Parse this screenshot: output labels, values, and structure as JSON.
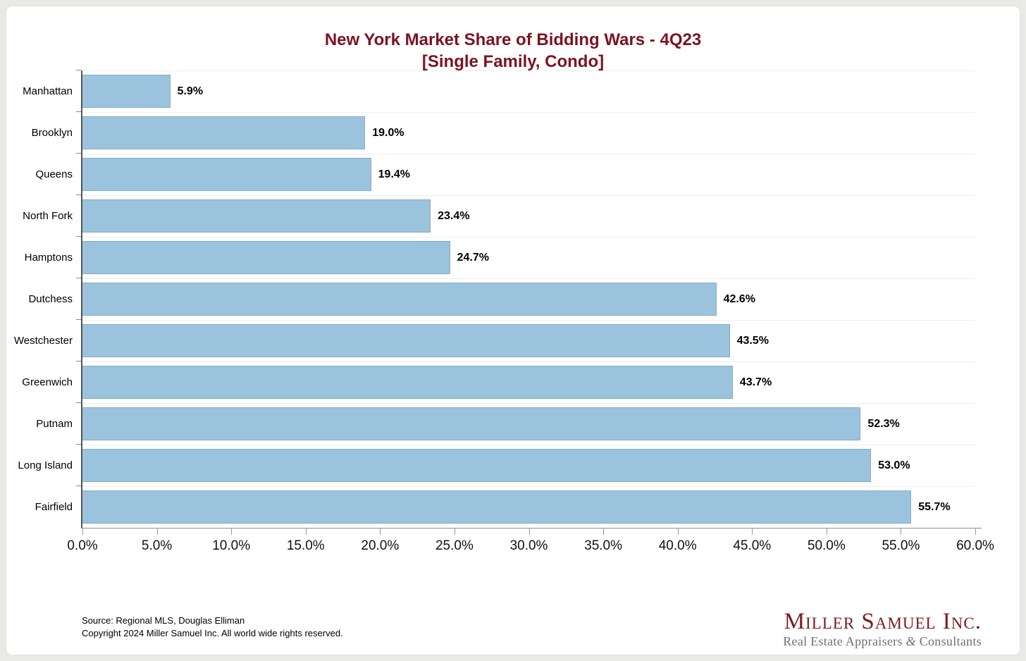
{
  "title": {
    "line1": "New York Market Share of Bidding Wars - 4Q23",
    "line2": "[Single Family, Condo]"
  },
  "chart_data": {
    "type": "bar",
    "orientation": "horizontal",
    "title": "New York Market Share of Bidding Wars - 4Q23 [Single Family, Condo]",
    "categories": [
      "Manhattan",
      "Brooklyn",
      "Queens",
      "North Fork",
      "Hamptons",
      "Dutchess",
      "Westchester",
      "Greenwich",
      "Putnam",
      "Long Island",
      "Fairfield"
    ],
    "values": [
      5.9,
      19.0,
      19.4,
      23.4,
      24.7,
      42.6,
      43.5,
      43.7,
      52.3,
      53.0,
      55.7
    ],
    "value_labels": [
      "5.9%",
      "19.0%",
      "19.4%",
      "23.4%",
      "24.7%",
      "42.6%",
      "43.5%",
      "43.7%",
      "52.3%",
      "53.0%",
      "55.7%"
    ],
    "xlabel": "",
    "ylabel": "",
    "xlim": [
      0,
      60
    ],
    "x_ticks": [
      "0.0%",
      "5.0%",
      "10.0%",
      "15.0%",
      "20.0%",
      "25.0%",
      "30.0%",
      "35.0%",
      "40.0%",
      "45.0%",
      "50.0%",
      "55.0%",
      "60.0%"
    ],
    "grid": "horizontal row boundaries only",
    "legend": "none",
    "bar_color": "#9cc3dd",
    "title_color": "#7c1322"
  },
  "footer": {
    "source": "Source: Regional MLS, Douglas Elliman",
    "copyright": "Copyright 2024 Miller Samuel Inc.  All world wide rights reserved."
  },
  "logo": {
    "name": "Miller Samuel Inc.",
    "tagline_pre": "Real Estate Appraisers ",
    "tagline_amp": "&",
    "tagline_post": " Consultants"
  }
}
